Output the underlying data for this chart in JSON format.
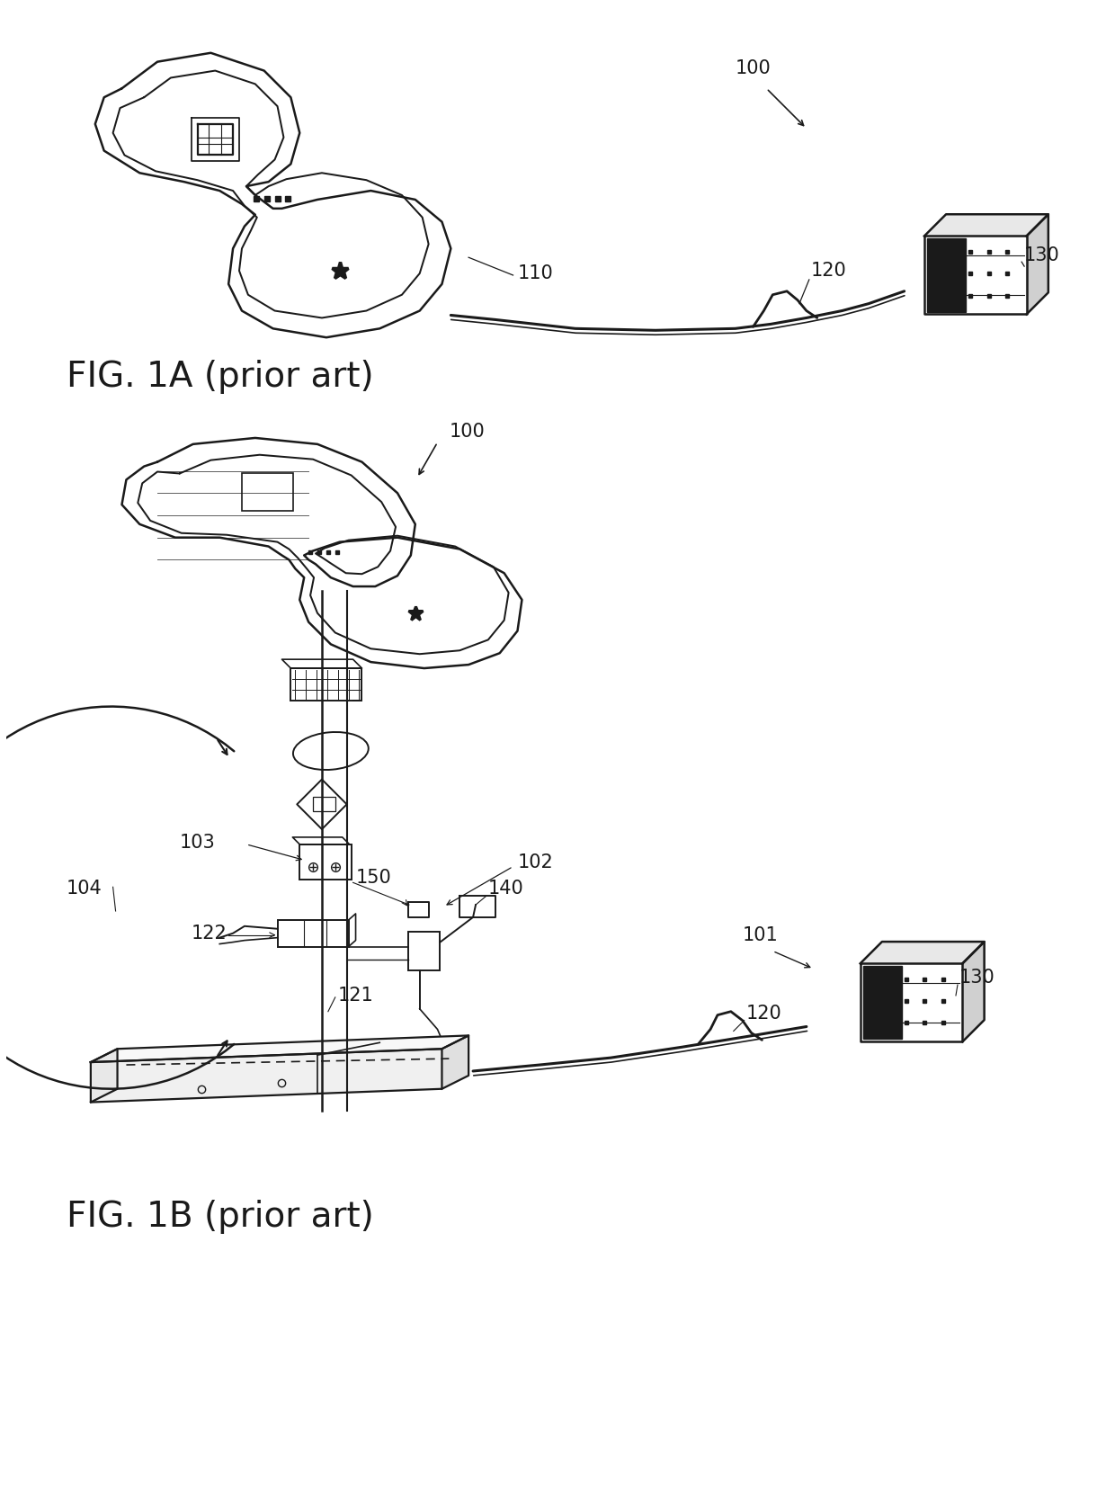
{
  "bg_color": "#ffffff",
  "line_color": "#1a1a1a",
  "fig_width": 12.4,
  "fig_height": 16.69,
  "dpi": 100
}
